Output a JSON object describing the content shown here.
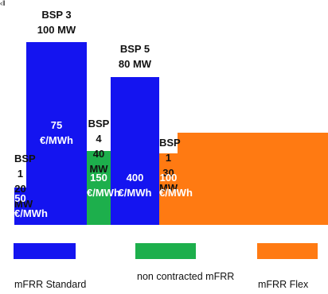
{
  "colors": {
    "mfrr_standard": "#1414f0",
    "non_contracted": "#1daf4c",
    "mfrr_flex": "#ff7a12"
  },
  "chart_data": {
    "type": "bar",
    "title": "",
    "xlabel": "",
    "ylabel": "",
    "bars": [
      {
        "bsp": "BSP 1",
        "capacity": "20 MW",
        "capacity_mw": 20,
        "price": "50",
        "price_eur_mwh": 50,
        "unit": "€/MWh",
        "group": "mfrr_standard"
      },
      {
        "bsp": "BSP 3",
        "capacity": "100 MW",
        "capacity_mw": 100,
        "price": "75",
        "price_eur_mwh": 75,
        "unit": "€/MWh",
        "group": "mfrr_standard"
      },
      {
        "bsp": "BSP 4",
        "capacity": "40 MW",
        "capacity_mw": 40,
        "price": "150",
        "price_eur_mwh": 150,
        "unit": "€/MWh",
        "group": "non_contracted"
      },
      {
        "bsp": "BSP 5",
        "capacity": "80 MW",
        "capacity_mw": 80,
        "price": "400",
        "price_eur_mwh": 400,
        "unit": "€/MWh",
        "group": "mfrr_standard"
      },
      {
        "bsp": "BSP 1",
        "capacity": "30 MW",
        "capacity_mw": 30,
        "price": "100",
        "price_eur_mwh": 100,
        "unit": "€/MWh",
        "group": "mfrr_flex"
      }
    ],
    "legend": [
      {
        "label": "mFRR Standard",
        "group": "mfrr_standard"
      },
      {
        "label": "non contracted mFRR",
        "group": "non_contracted"
      },
      {
        "label": "mFRR Flex",
        "group": "mfrr_flex"
      }
    ]
  }
}
